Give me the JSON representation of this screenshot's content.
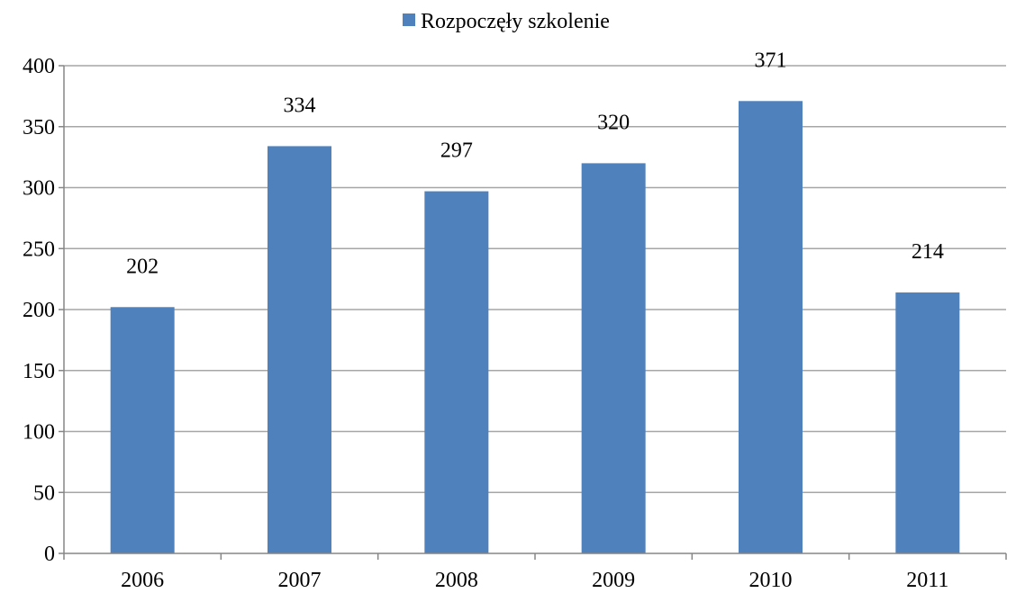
{
  "chart_data": {
    "type": "bar",
    "categories": [
      "2006",
      "2007",
      "2008",
      "2009",
      "2010",
      "2011"
    ],
    "series": [
      {
        "name": "Rozpoczęły szkolenie",
        "values": [
          202,
          334,
          297,
          320,
          371,
          214
        ],
        "color": "#4F81BD"
      }
    ],
    "ylim": [
      0,
      400
    ],
    "yticks": [
      0,
      50,
      100,
      150,
      200,
      250,
      300,
      350,
      400
    ],
    "grid": true,
    "legend_position": "top-center",
    "data_labels": true
  },
  "colors": {
    "bar": "#4F81BD",
    "grid": "#a6a6a6",
    "axis": "#868686"
  }
}
